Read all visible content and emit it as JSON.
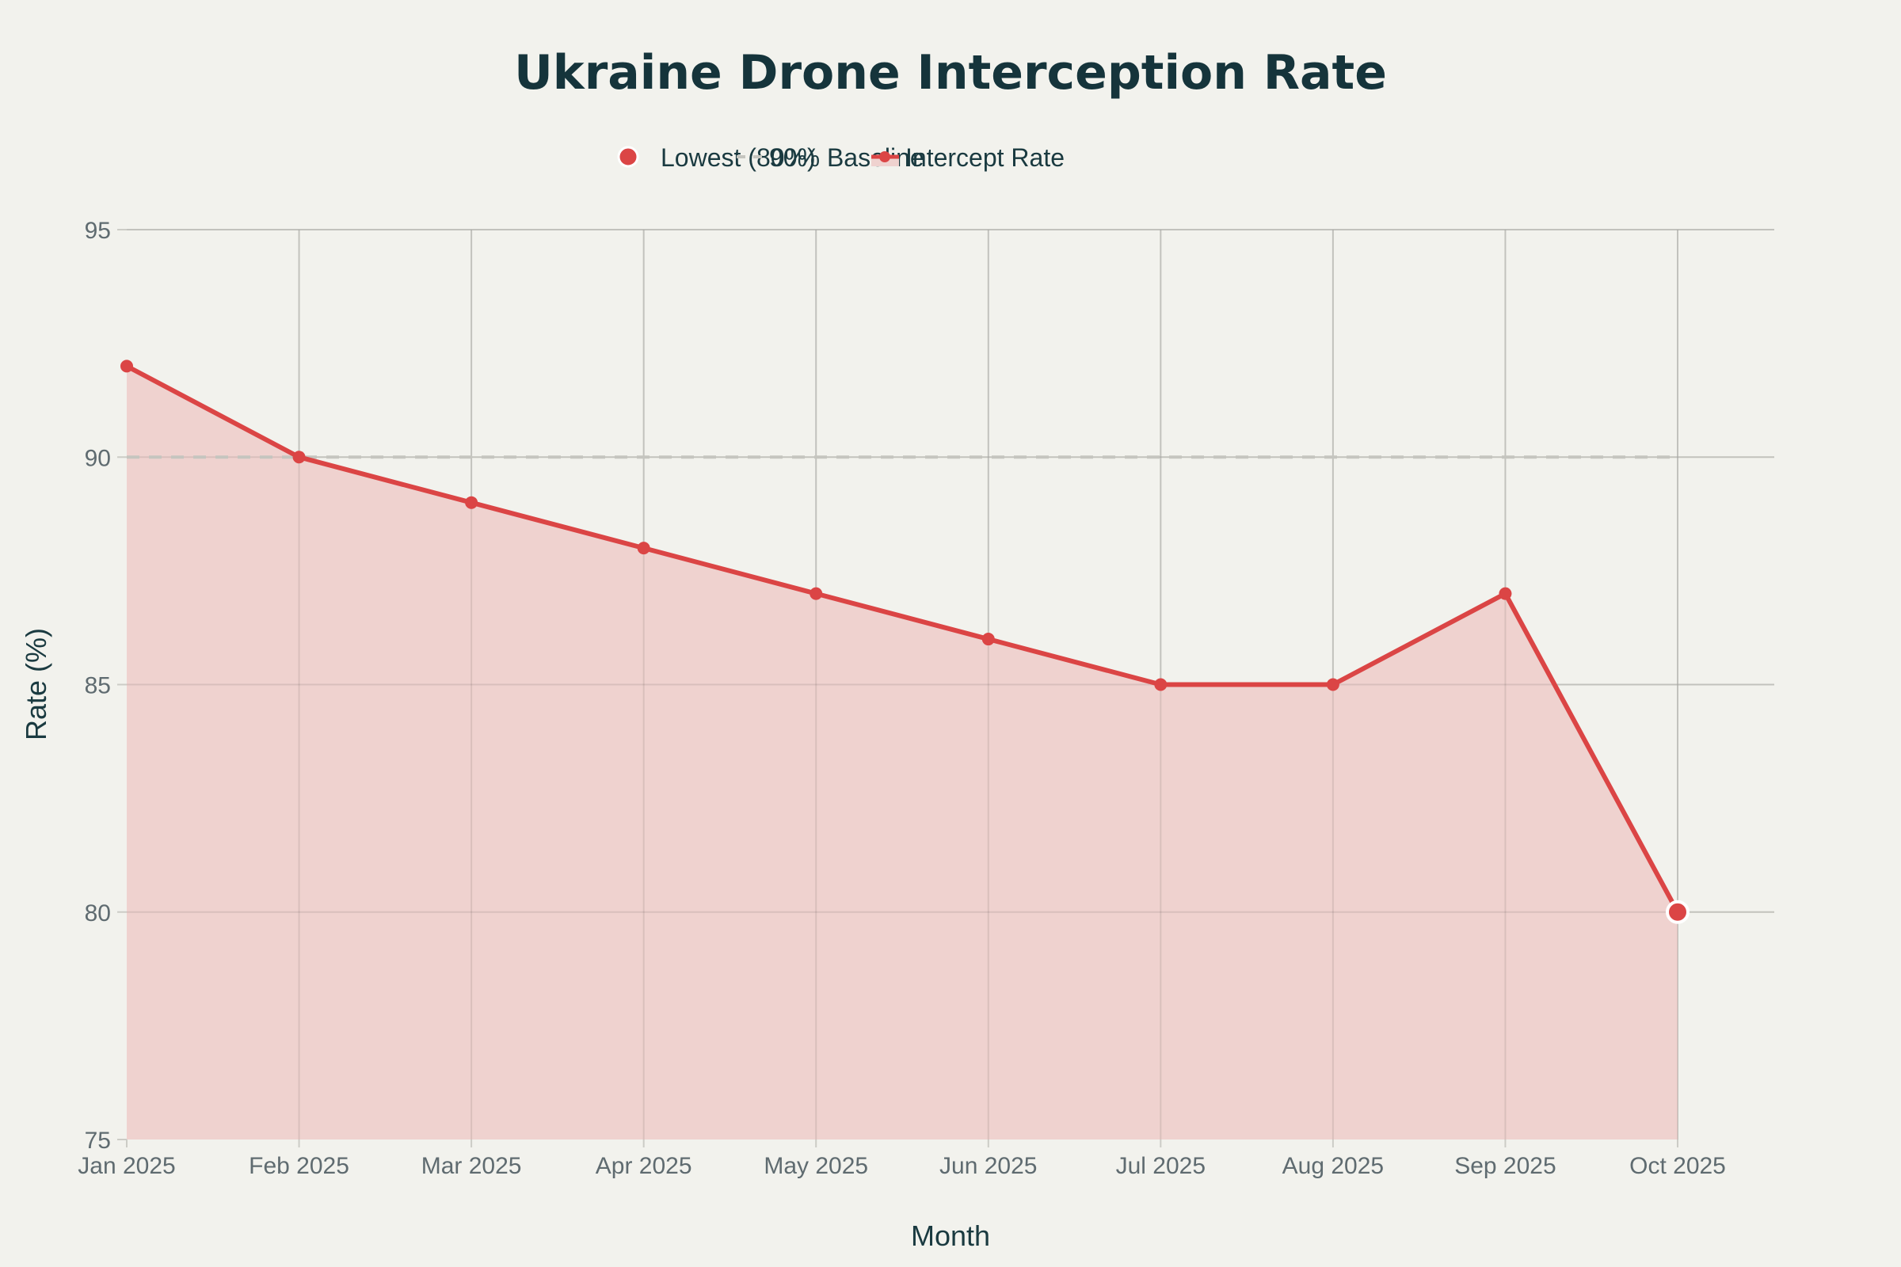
{
  "chart_data": {
    "type": "area",
    "title": "Ukraine Drone Interception Rate",
    "xlabel": "Month",
    "ylabel": "Rate (%)",
    "ylim": [
      75,
      95
    ],
    "yticks": [
      "75",
      "80",
      "85",
      "90",
      "95"
    ],
    "categories": [
      "Jan 2025",
      "Feb 2025",
      "Mar 2025",
      "Apr 2025",
      "May 2025",
      "Jun 2025",
      "Jul 2025",
      "Aug 2025",
      "Sep 2025",
      "Oct 2025"
    ],
    "series": [
      {
        "name": "Intercept Rate",
        "values": [
          92,
          90,
          89,
          88,
          87,
          86,
          85,
          85,
          87,
          80
        ],
        "color": "#db4545",
        "fill": "#efd2cf"
      }
    ],
    "baseline": {
      "name": "90% Baseline",
      "value": 90,
      "color": "#c5c5bf"
    },
    "highlight": {
      "name": "Lowest (80%)",
      "category": "Oct 2025",
      "value": 80,
      "color": "#db4545"
    },
    "legend": [
      "Lowest (80%)",
      "90% Baseline",
      "Intercept Rate"
    ],
    "legend_position": "top-center",
    "grid": true
  }
}
